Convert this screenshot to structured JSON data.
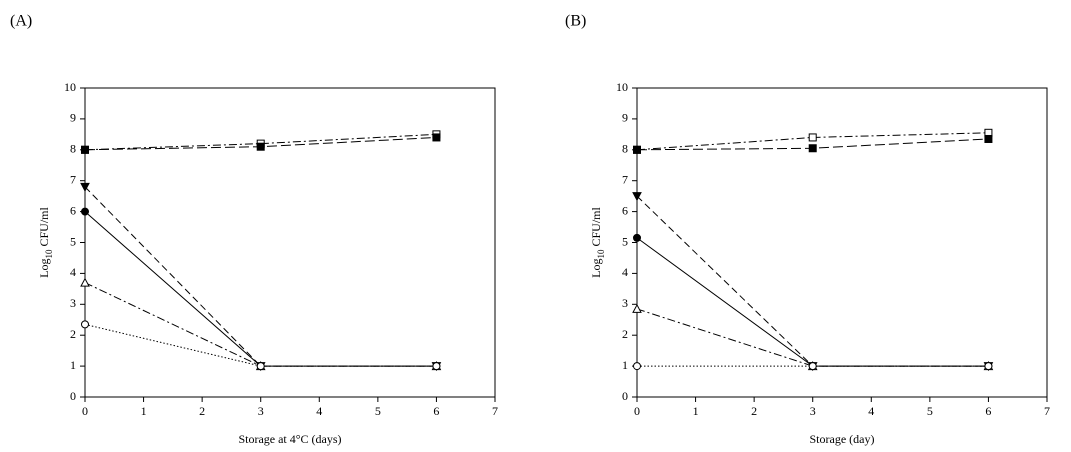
{
  "chart_data": [
    {
      "type": "line",
      "title": "(A)",
      "x_label": "Storage at 4°C (days)",
      "y_label": [
        "Log",
        "10",
        " CFU/ml"
      ],
      "x": [
        0,
        3,
        6
      ],
      "xlim": [
        0,
        7
      ],
      "xticks": [
        0,
        1,
        2,
        3,
        4,
        5,
        6,
        7
      ],
      "ylim": [
        0,
        10
      ],
      "yticks": [
        0,
        1,
        2,
        3,
        4,
        5,
        6,
        7,
        8,
        9,
        10
      ],
      "series": [
        {
          "color": "#000000",
          "marker": "square",
          "filled": false,
          "dash": "8 3 2 3",
          "values": [
            8.0,
            8.2,
            8.5
          ]
        },
        {
          "color": "#000000",
          "marker": "square",
          "filled": true,
          "dash": "10 4",
          "values": [
            8.0,
            8.1,
            8.4
          ]
        },
        {
          "color": "#000000",
          "marker": "triangle-down",
          "filled": true,
          "dash": "7 4",
          "values": [
            6.8,
            1.0,
            1.0
          ]
        },
        {
          "color": "#000000",
          "marker": "circle",
          "filled": true,
          "dash": "none",
          "values": [
            6.0,
            1.0,
            1.0
          ]
        },
        {
          "color": "#000000",
          "marker": "triangle-up",
          "filled": false,
          "dash": "8 3 2 3",
          "values": [
            3.7,
            1.0,
            1.0
          ]
        },
        {
          "color": "#000000",
          "marker": "circle",
          "filled": false,
          "dash": "1.5 2",
          "values": [
            2.35,
            1.0,
            1.0
          ]
        }
      ]
    },
    {
      "type": "line",
      "title": "(B)",
      "x_label": "Storage (day)",
      "y_label": [
        "Log",
        "10",
        " CFU/ml"
      ],
      "x": [
        0,
        3,
        6
      ],
      "xlim": [
        0,
        7
      ],
      "xticks": [
        0,
        1,
        2,
        3,
        4,
        5,
        6,
        7
      ],
      "ylim": [
        0,
        10
      ],
      "yticks": [
        0,
        1,
        2,
        3,
        4,
        5,
        6,
        7,
        8,
        9,
        10
      ],
      "series": [
        {
          "color": "#000000",
          "marker": "square",
          "filled": false,
          "dash": "8 3 2 3",
          "values": [
            8.0,
            8.4,
            8.55
          ]
        },
        {
          "color": "#000000",
          "marker": "square",
          "filled": true,
          "dash": "10 4",
          "values": [
            8.0,
            8.05,
            8.35
          ]
        },
        {
          "color": "#000000",
          "marker": "triangle-down",
          "filled": true,
          "dash": "7 4",
          "values": [
            6.5,
            1.0,
            1.0
          ]
        },
        {
          "color": "#000000",
          "marker": "circle",
          "filled": true,
          "dash": "none",
          "values": [
            5.15,
            1.0,
            1.0
          ]
        },
        {
          "color": "#000000",
          "marker": "triangle-up",
          "filled": false,
          "dash": "8 3 2 3",
          "values": [
            2.85,
            1.0,
            1.0
          ]
        },
        {
          "color": "#000000",
          "marker": "circle",
          "filled": false,
          "dash": "1.5 2",
          "values": [
            1.0,
            1.0,
            1.0
          ]
        }
      ]
    }
  ]
}
